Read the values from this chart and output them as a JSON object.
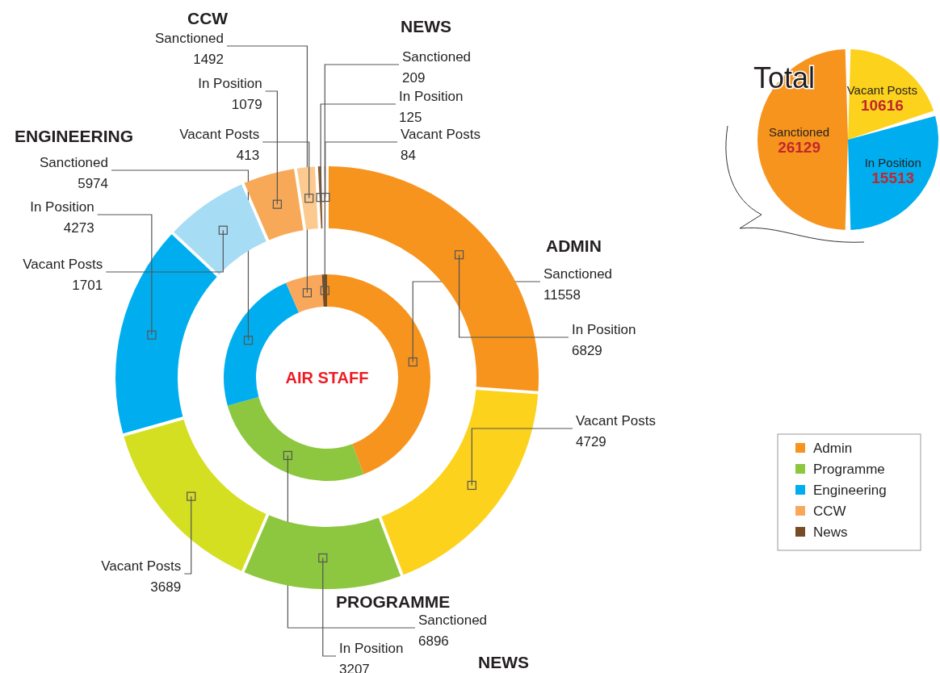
{
  "chart_data": [
    {
      "type": "donut",
      "title": "AIR STAFF",
      "categories": [
        "Admin",
        "Programme",
        "Engineering",
        "CCW",
        "News"
      ],
      "legend": "bottom right",
      "values": [
        11558,
        6896,
        5974,
        1492,
        209
      ],
      "colors": [
        "#f7941d",
        "#8dc63f",
        "#00aeef",
        "#f9a85b",
        "#754c24"
      ],
      "value_labels": [
        "Sanctioned\n11558",
        "Sanctioned\n6896",
        "Sanctioned\n5974",
        "Sanctioned\n1492",
        "Sanctioned\n209"
      ],
      "annotations": [
        "ADMIN",
        "PROGRAMME",
        "ENGINEERING",
        "CCW",
        "NEWS",
        "NEWS"
      ]
    },
    {
      "type": "donut",
      "categories": [
        null,
        null,
        null,
        null,
        null,
        null,
        null,
        null,
        null,
        null
      ],
      "values": [
        6829,
        4729,
        3207,
        3689,
        4273,
        1701,
        1079,
        413,
        125,
        84
      ],
      "colors": [
        "#f7941d",
        "#fcd21d",
        "#8dc63f",
        "#d5df22",
        "#00aeef",
        "#a7dcf5",
        "#f7a957",
        "#fcc98e",
        "#8b5e34",
        "#a0672f"
      ],
      "value_labels": [
        "In Position\n6829",
        "Vacant Posts\n4729",
        "In Position\n3207",
        "Vacant Posts\n3689",
        "In Position\n4273",
        "Vacant Posts\n1701",
        "In Position\n1079",
        "Vacant Posts\n413",
        "In Position\n125",
        "Vacant Posts\n84"
      ]
    },
    {
      "type": "pie",
      "title": "Total",
      "categories": [
        "Vacant Posts",
        "In Position",
        "Sanctioned"
      ],
      "values": [
        10616,
        15513,
        26129
      ],
      "colors": [
        "#fcd21d",
        "#00aeef",
        "#f7941d"
      ],
      "data_labels": true
    }
  ]
}
